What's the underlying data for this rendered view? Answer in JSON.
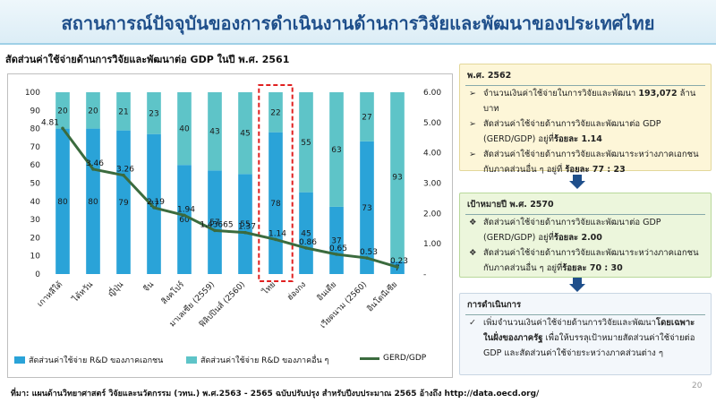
{
  "slide": {
    "title": "สถานการณ์ปัจจุบันของการดำเนินงานด้านการวิจัยและพัฒนาของประเทศไทย",
    "subtitle": "สัดส่วนค่าใช้จ่ายด้านการวิจัยและพัฒนาต่อ GDP ในปี พ.ศ. 2561",
    "source": "ที่มา: แผนด้านวิทยาศาสตร์ วิจัยและนวัตกรรม (วทน.) พ.ศ.2563 - 2565 ฉบับปรับปรุง สำหรับปีงบประมาณ 2565 อ้างถึง http://data.oecd.org/",
    "page_number": "20"
  },
  "colors": {
    "private": "#2aa3d8",
    "other": "#5ec4c8",
    "gerd_line": "#3b6b3e",
    "highlight": "#e02020",
    "title": "#1f4f8b"
  },
  "chart_data": {
    "type": "bar",
    "stacked": true,
    "categories": [
      "เกาหลีใต้",
      "ไต้หวัน",
      "ญี่ปุ่น",
      "จีน",
      "สิงคโปร์",
      "มาเลเซีย (2559)",
      "ฟิลิปปินส์ (2560)",
      "ไทย",
      "ฮ่องกง",
      "อินเดีย",
      "เวียดนาม (2560)",
      "อินโดนีเซีย"
    ],
    "series": [
      {
        "name": "สัดส่วนค่าใช้จ่าย R&D ของภาคเอกชน",
        "values": [
          80,
          80,
          79,
          77,
          60,
          57,
          55,
          78,
          45,
          37,
          73,
          7
        ]
      },
      {
        "name": "สัดส่วนค่าใช้จ่าย R&D ของภาคอื่น ๆ",
        "values": [
          20,
          20,
          21,
          23,
          40,
          43,
          45,
          22,
          55,
          63,
          27,
          93
        ]
      },
      {
        "name": "GERD/GDP",
        "axis": "right",
        "values": [
          4.81,
          3.46,
          3.26,
          2.19,
          1.94,
          1.43665,
          1.37,
          1.14,
          0.86,
          0.65,
          0.53,
          0.23
        ],
        "labels": [
          "4.81",
          "3.46",
          "3.26",
          "2.19",
          "1.94",
          "1.43665",
          "1.37",
          "1.14",
          "0.86",
          "0.65",
          "0.53",
          "0.23"
        ]
      }
    ],
    "ylim": [
      0,
      100
    ],
    "y_ticks": [
      "0",
      "10",
      "20",
      "30",
      "40",
      "50",
      "60",
      "70",
      "80",
      "90",
      "100"
    ],
    "y2lim": [
      0,
      6
    ],
    "y2_ticks": [
      "-",
      "1.00",
      "2.00",
      "3.00",
      "4.00",
      "5.00",
      "6.00"
    ],
    "highlight_category": "ไทย",
    "legend_position": "bottom",
    "grid": false
  },
  "panel_2562": {
    "heading": "พ.ศ. 2562",
    "bullets": [
      [
        "จำนวนเงินค่าใช้จ่ายในการวิจัยและพัฒนา ",
        "193,072",
        " ล้านบาท"
      ],
      [
        "สัดส่วนค่าใช้จ่ายด้านการวิจัยและพัฒนาต่อ GDP (GERD/GDP) อยู่ที่",
        "ร้อยละ 1.14",
        ""
      ],
      [
        "สัดส่วนค่าใช้จ่ายด้านการวิจัยและพัฒนาระหว่างภาคเอกชนกับภาคส่วนอื่น ๆ อยู่ที่ ",
        "ร้อยละ 77 : 23",
        ""
      ]
    ]
  },
  "panel_2570": {
    "heading": "เป้าหมายปี พ.ศ. 2570",
    "bullets": [
      [
        "สัดส่วนค่าใช้จ่ายด้านการวิจัยและพัฒนาต่อ GDP (GERD/GDP) อยู่ที่",
        "ร้อยละ 2.00",
        ""
      ],
      [
        "สัดส่วนค่าใช้จ่ายด้านการวิจัยและพัฒนาระหว่างภาคเอกชนกับภาคส่วนอื่น ๆ อยู่ที่",
        "ร้อยละ 70 : 30",
        ""
      ]
    ]
  },
  "panel_action": {
    "heading": "การดำเนินการ",
    "text_pre": "เพิ่มจำนวนเงินค่าใช้จ่ายด้านการวิจัยและพัฒนา",
    "text_bold": "โดยเฉพาะในฝั่งของภาครัฐ",
    "text_post": " เพื่อให้บรรลุเป้าหมายสัดส่วนค่าใช้จ่ายต่อ GDP และสัดส่วนค่าใช้จ่ายระหว่างภาคส่วนต่าง ๆ"
  }
}
